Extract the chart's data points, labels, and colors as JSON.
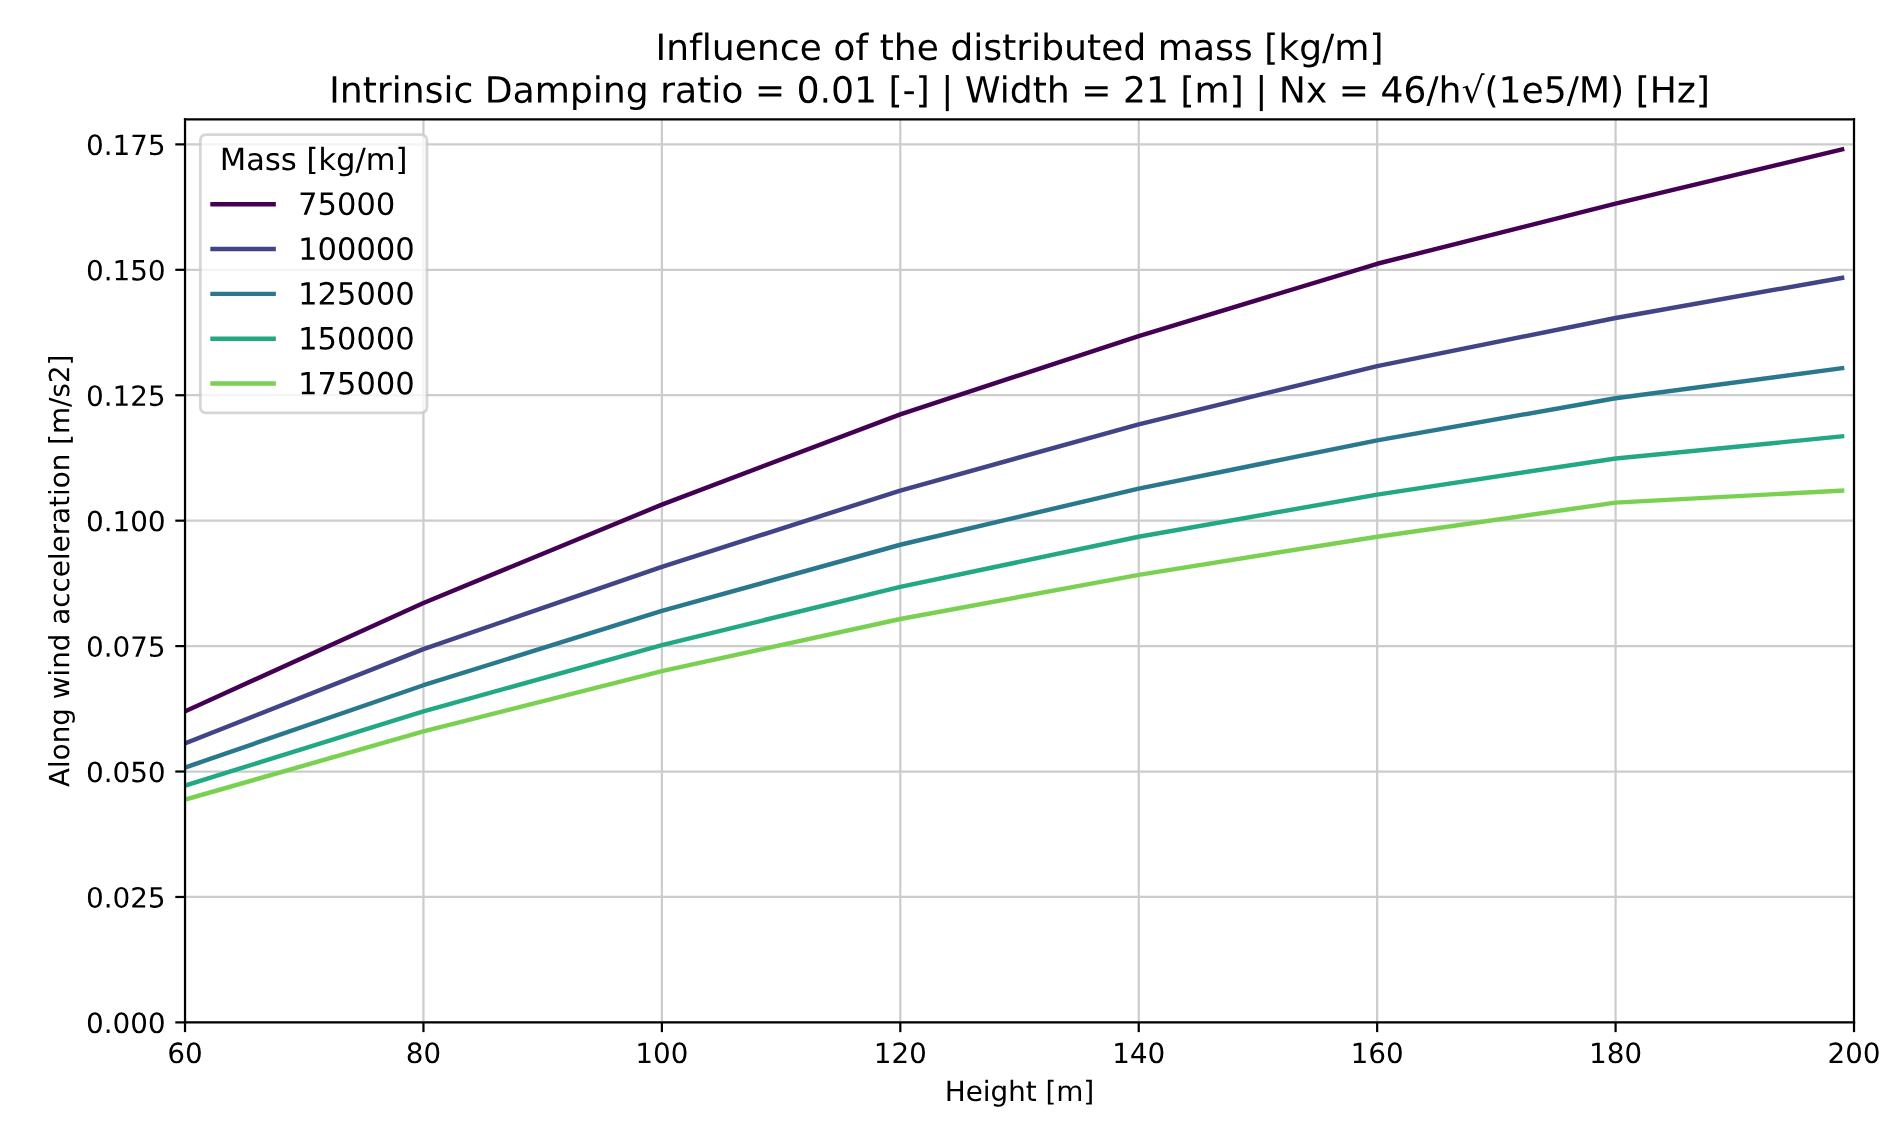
{
  "chart_data": {
    "type": "line",
    "title": "Influence of the distributed mass [kg/m]",
    "subtitle": "Intrinsic Damping ratio = 0.01 [-] | Width = 21 [m] | Nx = 46/h√(1e5/M) [Hz]",
    "xlabel": "Height [m]",
    "ylabel": "Along wind acceleration [m/s2]",
    "legend_title": "Mass [kg/m]",
    "x": [
      60,
      80,
      100,
      120,
      140,
      160,
      180,
      199
    ],
    "series": [
      {
        "name": "75000",
        "color": "#440154",
        "values": [
          0.062,
          0.0836,
          0.1032,
          0.1212,
          0.1368,
          0.1512,
          0.1632,
          0.174
        ]
      },
      {
        "name": "100000",
        "color": "#414487",
        "values": [
          0.0556,
          0.0744,
          0.0908,
          0.106,
          0.1192,
          0.1308,
          0.1404,
          0.1484
        ]
      },
      {
        "name": "125000",
        "color": "#2a788e",
        "values": [
          0.0508,
          0.0672,
          0.082,
          0.0952,
          0.1064,
          0.116,
          0.1244,
          0.1304
        ]
      },
      {
        "name": "150000",
        "color": "#22a884",
        "values": [
          0.0472,
          0.062,
          0.0752,
          0.0868,
          0.0968,
          0.1052,
          0.1124,
          0.1168
        ]
      },
      {
        "name": "175000",
        "color": "#7ad151",
        "values": [
          0.0444,
          0.058,
          0.07,
          0.0804,
          0.0892,
          0.0968,
          0.1036,
          0.106
        ]
      }
    ],
    "xlim": [
      60,
      200
    ],
    "xticks": [
      60,
      80,
      100,
      120,
      140,
      160,
      180,
      200
    ],
    "ylim": [
      0,
      0.18
    ],
    "yticks": [
      {
        "value": 0,
        "label": "0.000"
      },
      {
        "value": 0.025,
        "label": "0.025"
      },
      {
        "value": 0.05,
        "label": "0.050"
      },
      {
        "value": 0.075,
        "label": "0.075"
      },
      {
        "value": 0.1,
        "label": "0.100"
      },
      {
        "value": 0.125,
        "label": "0.125"
      },
      {
        "value": 0.15,
        "label": "0.150"
      },
      {
        "value": 0.175,
        "label": "0.175"
      }
    ],
    "grid": true,
    "legend": "upper left",
    "marker": "none",
    "line_style": "solid"
  }
}
